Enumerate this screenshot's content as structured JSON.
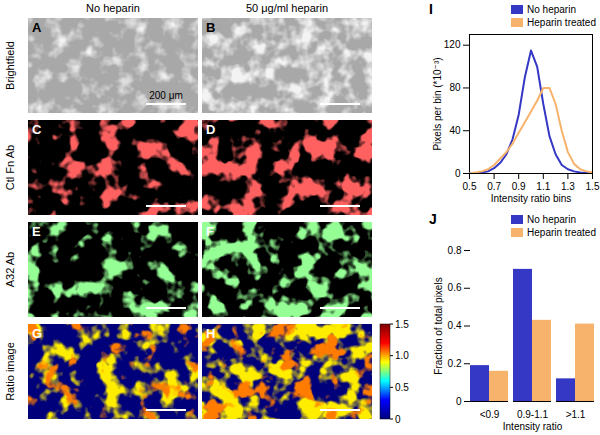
{
  "figure": {
    "columns": [
      "No heparin",
      "50 μg/ml heparin"
    ],
    "rows": [
      "Brightfield",
      "Ctl Fn Ab",
      "A32 Ab",
      "Ratio image"
    ],
    "panels": [
      [
        "A",
        "B"
      ],
      [
        "C",
        "D"
      ],
      [
        "E",
        "F"
      ],
      [
        "G",
        "H"
      ]
    ],
    "scale_bar": "200 μm",
    "color_bar": {
      "range": [
        0,
        1.5
      ],
      "ticks": [
        0,
        0.5,
        {
          "value": 1,
          "label": "1.0"
        },
        1.5
      ]
    }
  },
  "chart_data": [
    {
      "type": "line",
      "title": "I",
      "x_label": "Intensity ratio bins",
      "y_label": "Pixels per bin (*10⁻³)",
      "x": [
        0.5,
        0.55,
        0.6,
        0.65,
        0.7,
        0.75,
        0.8,
        0.85,
        0.9,
        0.95,
        1.0,
        1.05,
        1.1,
        1.15,
        1.2,
        1.25,
        1.3,
        1.35,
        1.4,
        1.45,
        1.5
      ],
      "series": [
        {
          "name": "No heparin",
          "color": "#3438c4",
          "values": [
            0,
            0.5,
            1,
            2,
            5,
            10,
            18,
            32,
            55,
            90,
            115,
            100,
            65,
            35,
            18,
            8,
            4,
            2,
            1,
            0.5,
            0
          ]
        },
        {
          "name": "Heparin treated",
          "color": "#f7b36b",
          "values": [
            0,
            1,
            2,
            4,
            8,
            14,
            20,
            28,
            38,
            48,
            58,
            68,
            80,
            80,
            65,
            40,
            20,
            9,
            4,
            2,
            1
          ]
        }
      ],
      "xlim": [
        0.5,
        1.5
      ],
      "xticks": [
        0.5,
        0.7,
        0.9,
        1.1,
        1.3,
        1.5
      ],
      "ylim": [
        0,
        130
      ],
      "yticks": [
        0,
        40,
        80,
        120
      ],
      "legend": "top-right"
    },
    {
      "type": "bar",
      "title": "J",
      "x_label": "Intensity ratio",
      "y_label": "Fraction of total pixels",
      "categories": [
        "<0.9",
        "0.9-1.1",
        ">1.1"
      ],
      "series": [
        {
          "name": "No heparin",
          "color": "#3438c4",
          "values": [
            0.19,
            0.7,
            0.12
          ]
        },
        {
          "name": "Heparin treated",
          "color": "#f7b36b",
          "values": [
            0.16,
            0.43,
            0.41
          ]
        }
      ],
      "ylim": [
        0,
        0.8
      ],
      "yticks": [
        0,
        0.2,
        0.4,
        0.6,
        0.8
      ],
      "legend": "top-right"
    }
  ]
}
